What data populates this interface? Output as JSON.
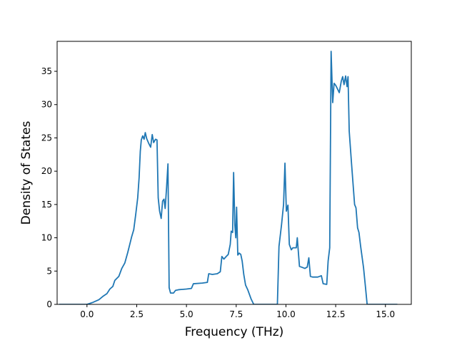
{
  "chart_data": {
    "type": "line",
    "title": "",
    "xlabel": "Frequency (THz)",
    "ylabel": "Density of States",
    "xlim": [
      -1.5,
      16.3
    ],
    "ylim": [
      0,
      39.5
    ],
    "xticks": [
      0.0,
      2.5,
      5.0,
      7.5,
      10.0,
      12.5,
      15.0
    ],
    "xtick_labels": [
      "0.0",
      "2.5",
      "5.0",
      "7.5",
      "10.0",
      "12.5",
      "15.0"
    ],
    "yticks": [
      0,
      5,
      10,
      15,
      20,
      25,
      30,
      35
    ],
    "ytick_labels": [
      "0",
      "5",
      "10",
      "15",
      "20",
      "25",
      "30",
      "35"
    ],
    "grid": false,
    "legend": "none",
    "series": [
      {
        "color": "#1f77b4",
        "points": [
          [
            -1.4,
            0.0
          ],
          [
            -0.5,
            0.0
          ],
          [
            0.0,
            0.0
          ],
          [
            0.3,
            0.3
          ],
          [
            0.6,
            0.7
          ],
          [
            0.8,
            1.2
          ],
          [
            1.0,
            1.6
          ],
          [
            1.15,
            2.3
          ],
          [
            1.3,
            2.7
          ],
          [
            1.4,
            3.6
          ],
          [
            1.6,
            4.2
          ],
          [
            1.75,
            5.4
          ],
          [
            1.9,
            6.2
          ],
          [
            2.05,
            7.8
          ],
          [
            2.15,
            9.0
          ],
          [
            2.25,
            10.2
          ],
          [
            2.35,
            11.2
          ],
          [
            2.45,
            13.5
          ],
          [
            2.55,
            16.0
          ],
          [
            2.62,
            19.0
          ],
          [
            2.68,
            23.0
          ],
          [
            2.73,
            24.7
          ],
          [
            2.8,
            25.3
          ],
          [
            2.87,
            24.8
          ],
          [
            2.93,
            25.8
          ],
          [
            3.0,
            24.9
          ],
          [
            3.1,
            24.2
          ],
          [
            3.2,
            23.6
          ],
          [
            3.28,
            25.5
          ],
          [
            3.35,
            24.3
          ],
          [
            3.45,
            24.8
          ],
          [
            3.52,
            24.7
          ],
          [
            3.58,
            16.0
          ],
          [
            3.65,
            14.0
          ],
          [
            3.73,
            12.9
          ],
          [
            3.8,
            15.5
          ],
          [
            3.87,
            15.8
          ],
          [
            3.93,
            14.4
          ],
          [
            4.0,
            17.5
          ],
          [
            4.07,
            21.1
          ],
          [
            4.13,
            2.5
          ],
          [
            4.2,
            1.7
          ],
          [
            4.35,
            1.7
          ],
          [
            4.45,
            2.1
          ],
          [
            4.6,
            2.2
          ],
          [
            5.0,
            2.3
          ],
          [
            5.25,
            2.4
          ],
          [
            5.35,
            3.1
          ],
          [
            5.8,
            3.2
          ],
          [
            6.05,
            3.3
          ],
          [
            6.12,
            4.6
          ],
          [
            6.3,
            4.5
          ],
          [
            6.55,
            4.6
          ],
          [
            6.7,
            4.9
          ],
          [
            6.78,
            7.2
          ],
          [
            6.88,
            6.8
          ],
          [
            7.0,
            7.2
          ],
          [
            7.1,
            7.5
          ],
          [
            7.2,
            9.0
          ],
          [
            7.25,
            11.0
          ],
          [
            7.32,
            10.8
          ],
          [
            7.37,
            19.8
          ],
          [
            7.43,
            12.0
          ],
          [
            7.48,
            10.0
          ],
          [
            7.52,
            14.6
          ],
          [
            7.58,
            7.4
          ],
          [
            7.65,
            7.7
          ],
          [
            7.73,
            7.5
          ],
          [
            7.8,
            6.5
          ],
          [
            7.88,
            4.5
          ],
          [
            7.97,
            2.9
          ],
          [
            8.08,
            2.2
          ],
          [
            8.25,
            0.8
          ],
          [
            8.38,
            0.0
          ],
          [
            9.3,
            0.0
          ],
          [
            9.57,
            0.0
          ],
          [
            9.65,
            8.7
          ],
          [
            9.78,
            12.0
          ],
          [
            9.88,
            15.0
          ],
          [
            9.95,
            21.2
          ],
          [
            10.02,
            14.0
          ],
          [
            10.1,
            14.9
          ],
          [
            10.17,
            9.0
          ],
          [
            10.27,
            8.2
          ],
          [
            10.35,
            8.5
          ],
          [
            10.52,
            8.5
          ],
          [
            10.57,
            10.0
          ],
          [
            10.62,
            8.0
          ],
          [
            10.68,
            5.7
          ],
          [
            10.78,
            5.6
          ],
          [
            10.95,
            5.4
          ],
          [
            11.07,
            5.6
          ],
          [
            11.15,
            7.0
          ],
          [
            11.23,
            4.2
          ],
          [
            11.35,
            4.1
          ],
          [
            11.6,
            4.1
          ],
          [
            11.78,
            4.3
          ],
          [
            11.87,
            3.1
          ],
          [
            12.05,
            3.0
          ],
          [
            12.12,
            6.5
          ],
          [
            12.2,
            8.5
          ],
          [
            12.27,
            38.0
          ],
          [
            12.35,
            30.3
          ],
          [
            12.42,
            33.2
          ],
          [
            12.5,
            32.9
          ],
          [
            12.6,
            32.3
          ],
          [
            12.68,
            31.8
          ],
          [
            12.78,
            33.5
          ],
          [
            12.85,
            34.2
          ],
          [
            12.92,
            33.0
          ],
          [
            13.0,
            34.3
          ],
          [
            13.07,
            32.7
          ],
          [
            13.12,
            34.2
          ],
          [
            13.18,
            26.0
          ],
          [
            13.3,
            21.0
          ],
          [
            13.45,
            15.0
          ],
          [
            13.52,
            14.5
          ],
          [
            13.6,
            11.5
          ],
          [
            13.67,
            10.8
          ],
          [
            13.75,
            8.8
          ],
          [
            13.9,
            5.5
          ],
          [
            14.0,
            2.5
          ],
          [
            14.08,
            0.0
          ],
          [
            15.0,
            0.0
          ],
          [
            15.6,
            0.0
          ]
        ]
      }
    ]
  }
}
